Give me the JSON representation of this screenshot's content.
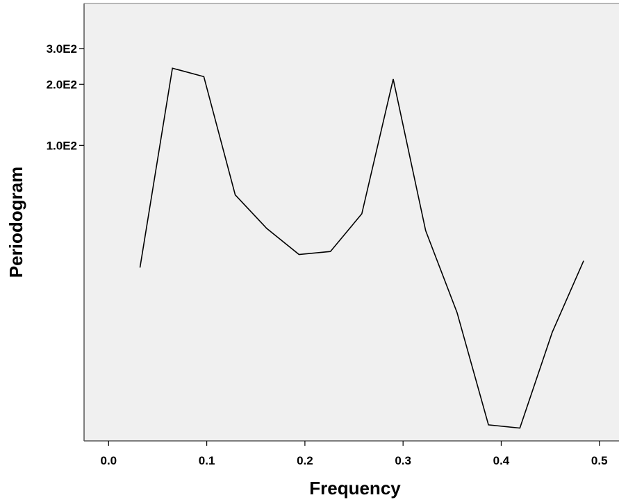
{
  "chart_data": {
    "type": "line",
    "xlabel": "Frequency",
    "ylabel": "Periodogram",
    "x_ticks": [
      "0.0",
      "0.1",
      "0.2",
      "0.3",
      "0.4",
      "0.5"
    ],
    "y_ticks": [
      "3.0E2",
      "2.0E2",
      "1.0E2"
    ],
    "y_scale": "log",
    "xlim": [
      -0.025,
      0.52
    ],
    "ylim": [
      3.5,
      500
    ],
    "grid": false,
    "colors": {
      "plot_bg": "#f0f0f0",
      "line": "#000000"
    },
    "series": [
      {
        "x": [
          0.032,
          0.065,
          0.097,
          0.129,
          0.161,
          0.194,
          0.226,
          0.258,
          0.29,
          0.323,
          0.355,
          0.387,
          0.419,
          0.452,
          0.484
        ],
        "y": [
          25,
          240,
          218,
          57,
          39,
          29,
          30,
          46,
          212,
          38,
          15,
          4.2,
          4.05,
          12,
          27
        ]
      }
    ]
  }
}
